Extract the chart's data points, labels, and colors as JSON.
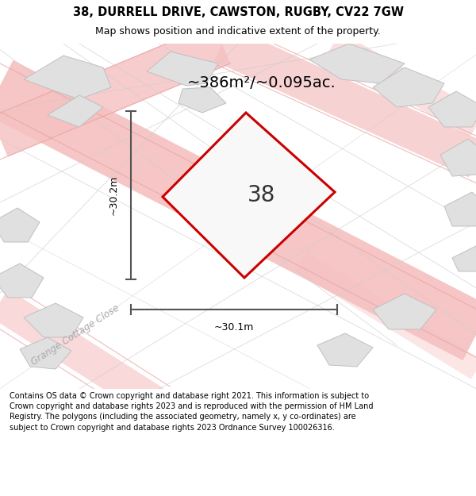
{
  "title": "38, DURRELL DRIVE, CAWSTON, RUGBY, CV22 7GW",
  "subtitle": "Map shows position and indicative extent of the property.",
  "footer": "Contains OS data © Crown copyright and database right 2021. This information is subject to Crown copyright and database rights 2023 and is reproduced with the permission of HM Land Registry. The polygons (including the associated geometry, namely x, y co-ordinates) are subject to Crown copyright and database rights 2023 Ordnance Survey 100026316.",
  "area_label": "~386m²/~0.095ac.",
  "width_label": "~30.1m",
  "height_label": "~30.2m",
  "property_number": "38",
  "road_label": "Grange Cottage Close",
  "title_fontsize": 10.5,
  "subtitle_fontsize": 9,
  "area_fontsize": 14,
  "number_fontsize": 20,
  "footer_fontsize": 7.0,
  "road_fontsize": 8.5,
  "map_bg": "#f5f5f5",
  "building_fill": "#e0e0e0",
  "building_edge": "#c0c0c0",
  "road_pink": "#f5c0c0",
  "road_pink_outline": "#e8a0a0",
  "dim_color": "#555555"
}
